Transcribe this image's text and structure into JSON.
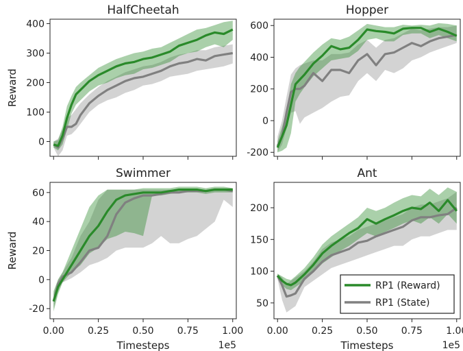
{
  "figure": {
    "legend": [
      {
        "label": "RP1 (Reward)",
        "color": "#2a8a2a"
      },
      {
        "label": "RP1 (State)",
        "color": "#808080"
      }
    ],
    "shared_xlabel": "Timesteps",
    "shared_ylabel": "Reward",
    "x_offset_text": "1e5"
  },
  "chart_data": [
    {
      "type": "line",
      "title": "HalfCheetah",
      "ylabel": "Reward",
      "xlabel": "",
      "xlim": [
        -0.02,
        1.02
      ],
      "ylim": [
        -50,
        415
      ],
      "yticks": [
        0,
        100,
        200,
        300,
        400
      ],
      "xticks": [
        0,
        0.25,
        0.5,
        0.75,
        1.0
      ],
      "show_xticklabels": false,
      "x": [
        0,
        0.025,
        0.05,
        0.075,
        0.1,
        0.125,
        0.15,
        0.2,
        0.25,
        0.3,
        0.35,
        0.4,
        0.45,
        0.5,
        0.55,
        0.6,
        0.65,
        0.7,
        0.75,
        0.8,
        0.85,
        0.9,
        0.95,
        1.0
      ],
      "series": [
        {
          "name": "RP1 (Reward)",
          "color": "#2a8a2a",
          "values": [
            -10,
            -15,
            20,
            80,
            125,
            160,
            175,
            205,
            225,
            240,
            255,
            265,
            270,
            280,
            285,
            295,
            305,
            325,
            335,
            345,
            360,
            370,
            365,
            380
          ],
          "lower": [
            -20,
            -30,
            -10,
            40,
            95,
            125,
            140,
            170,
            190,
            200,
            215,
            225,
            230,
            245,
            250,
            260,
            270,
            290,
            300,
            305,
            320,
            330,
            320,
            345
          ],
          "upper": [
            0,
            5,
            50,
            120,
            155,
            185,
            200,
            225,
            250,
            265,
            280,
            290,
            300,
            305,
            315,
            320,
            335,
            350,
            365,
            380,
            385,
            395,
            405,
            410
          ]
        },
        {
          "name": "RP1 (State)",
          "color": "#808080",
          "values": [
            -10,
            -20,
            10,
            50,
            50,
            60,
            90,
            130,
            155,
            175,
            190,
            205,
            215,
            220,
            230,
            240,
            255,
            265,
            270,
            280,
            275,
            290,
            295,
            300
          ],
          "lower": [
            -20,
            -50,
            -30,
            20,
            25,
            40,
            60,
            100,
            125,
            140,
            150,
            165,
            175,
            190,
            195,
            205,
            220,
            225,
            230,
            240,
            245,
            250,
            255,
            265
          ],
          "upper": [
            0,
            10,
            40,
            80,
            90,
            110,
            130,
            160,
            185,
            205,
            220,
            235,
            245,
            255,
            260,
            270,
            285,
            295,
            300,
            310,
            310,
            320,
            325,
            330
          ]
        }
      ]
    },
    {
      "type": "line",
      "title": "Hopper",
      "ylabel": "",
      "xlabel": "",
      "xlim": [
        -0.02,
        1.02
      ],
      "ylim": [
        -225,
        640
      ],
      "yticks": [
        -200,
        0,
        200,
        400,
        600
      ],
      "xticks": [
        0,
        0.25,
        0.5,
        0.75,
        1.0
      ],
      "show_xticklabels": false,
      "x": [
        0,
        0.025,
        0.05,
        0.075,
        0.1,
        0.125,
        0.15,
        0.2,
        0.25,
        0.3,
        0.35,
        0.4,
        0.45,
        0.5,
        0.55,
        0.6,
        0.65,
        0.7,
        0.75,
        0.8,
        0.85,
        0.9,
        0.95,
        1.0
      ],
      "series": [
        {
          "name": "RP1 (Reward)",
          "color": "#2a8a2a",
          "values": [
            -170,
            -100,
            -30,
            100,
            230,
            260,
            290,
            360,
            410,
            470,
            450,
            460,
            510,
            575,
            565,
            560,
            550,
            580,
            585,
            585,
            560,
            580,
            560,
            535
          ],
          "lower": [
            -200,
            -190,
            -170,
            -80,
            120,
            170,
            210,
            280,
            330,
            380,
            390,
            400,
            440,
            510,
            520,
            500,
            500,
            540,
            550,
            550,
            520,
            540,
            520,
            500
          ],
          "upper": [
            -130,
            -40,
            60,
            230,
            300,
            340,
            370,
            430,
            480,
            520,
            510,
            530,
            570,
            610,
            600,
            590,
            590,
            605,
            600,
            605,
            600,
            615,
            610,
            600
          ]
        },
        {
          "name": "RP1 (State)",
          "color": "#808080",
          "values": [
            -160,
            -100,
            50,
            180,
            200,
            200,
            220,
            300,
            250,
            320,
            320,
            300,
            380,
            420,
            350,
            420,
            430,
            460,
            490,
            470,
            500,
            520,
            530,
            540
          ],
          "lower": [
            -200,
            -150,
            -50,
            50,
            60,
            -20,
            20,
            50,
            80,
            120,
            150,
            160,
            250,
            300,
            250,
            320,
            300,
            330,
            380,
            400,
            430,
            450,
            470,
            490
          ],
          "upper": [
            -100,
            0,
            150,
            290,
            330,
            350,
            360,
            380,
            380,
            420,
            420,
            430,
            480,
            510,
            460,
            510,
            520,
            550,
            580,
            570,
            580,
            590,
            590,
            600
          ]
        }
      ]
    },
    {
      "type": "line",
      "title": "Swimmer",
      "ylabel": "Reward",
      "xlabel": "Timesteps",
      "xlim": [
        -0.02,
        1.02
      ],
      "ylim": [
        -27,
        67
      ],
      "yticks": [
        -20,
        0,
        20,
        40,
        60
      ],
      "xticks": [
        0,
        0.25,
        0.5,
        0.75,
        1.0
      ],
      "xticklabels": [
        "0.00",
        "0.25",
        "0.50",
        "0.75",
        "1.00"
      ],
      "show_xticklabels": true,
      "x": [
        0,
        0.025,
        0.05,
        0.1,
        0.15,
        0.2,
        0.25,
        0.3,
        0.35,
        0.4,
        0.45,
        0.5,
        0.55,
        0.6,
        0.65,
        0.7,
        0.75,
        0.8,
        0.85,
        0.9,
        0.95,
        1.0
      ],
      "series": [
        {
          "name": "RP1 (Reward)",
          "color": "#2a8a2a",
          "values": [
            -15,
            -5,
            0,
            10,
            20,
            30,
            37,
            47,
            55,
            58,
            59,
            60,
            60,
            60,
            61,
            62,
            62,
            62,
            61,
            62,
            62,
            62
          ],
          "lower": [
            -22,
            -10,
            -2,
            5,
            10,
            18,
            22,
            28,
            30,
            33,
            32,
            30,
            58,
            58,
            59,
            60,
            60,
            60,
            59,
            60,
            60,
            60
          ],
          "upper": [
            -8,
            0,
            5,
            20,
            35,
            50,
            58,
            62,
            62,
            62,
            62,
            63,
            63,
            63,
            63,
            64,
            64,
            64,
            63,
            64,
            64,
            63
          ]
        },
        {
          "name": "RP1 (State)",
          "color": "#808080",
          "values": [
            -15,
            -3,
            2,
            5,
            12,
            20,
            22,
            30,
            45,
            53,
            56,
            58,
            58,
            59,
            60,
            60,
            61,
            61,
            61,
            62,
            62,
            61
          ],
          "lower": [
            -20,
            -8,
            -2,
            1,
            5,
            10,
            12,
            15,
            20,
            22,
            22,
            22,
            25,
            30,
            25,
            25,
            28,
            30,
            35,
            40,
            55,
            50
          ],
          "upper": [
            -10,
            0,
            5,
            15,
            30,
            40,
            55,
            62,
            62,
            62,
            62,
            62,
            62,
            62,
            62,
            62,
            62,
            62,
            62,
            63,
            63,
            63
          ]
        }
      ]
    },
    {
      "type": "line",
      "title": "Ant",
      "ylabel": "",
      "xlabel": "Timesteps",
      "xlim": [
        -0.02,
        1.02
      ],
      "ylim": [
        25,
        240
      ],
      "yticks": [
        50,
        100,
        150,
        200
      ],
      "xticks": [
        0,
        0.25,
        0.5,
        0.75,
        1.0
      ],
      "xticklabels": [
        "0.00",
        "0.25",
        "0.50",
        "0.75",
        "1.00"
      ],
      "show_xticklabels": true,
      "x": [
        0,
        0.025,
        0.05,
        0.075,
        0.1,
        0.15,
        0.2,
        0.25,
        0.3,
        0.35,
        0.4,
        0.45,
        0.5,
        0.55,
        0.6,
        0.65,
        0.7,
        0.75,
        0.8,
        0.85,
        0.9,
        0.95,
        1.0
      ],
      "series": [
        {
          "name": "RP1 (Reward)",
          "color": "#2a8a2a",
          "values": [
            93,
            85,
            80,
            78,
            82,
            95,
            110,
            128,
            140,
            150,
            160,
            168,
            182,
            175,
            182,
            188,
            195,
            200,
            198,
            208,
            195,
            212,
            195
          ],
          "lower": [
            90,
            78,
            72,
            70,
            75,
            85,
            98,
            112,
            122,
            132,
            140,
            150,
            160,
            155,
            162,
            168,
            175,
            180,
            175,
            185,
            175,
            190,
            175
          ],
          "upper": [
            96,
            92,
            88,
            86,
            92,
            105,
            122,
            142,
            155,
            165,
            175,
            185,
            200,
            195,
            200,
            208,
            215,
            220,
            218,
            230,
            220,
            232,
            225
          ]
        },
        {
          "name": "RP1 (State)",
          "color": "#808080",
          "values": [
            93,
            78,
            60,
            62,
            65,
            88,
            100,
            115,
            125,
            130,
            135,
            145,
            148,
            155,
            160,
            165,
            170,
            180,
            185,
            185,
            188,
            190,
            200
          ],
          "lower": [
            88,
            55,
            35,
            40,
            45,
            75,
            85,
            95,
            105,
            110,
            115,
            120,
            125,
            130,
            135,
            140,
            140,
            150,
            155,
            155,
            160,
            165,
            165
          ],
          "upper": [
            96,
            90,
            80,
            85,
            90,
            100,
            115,
            135,
            145,
            150,
            155,
            165,
            170,
            175,
            180,
            185,
            190,
            200,
            205,
            205,
            210,
            215,
            225
          ]
        }
      ]
    }
  ]
}
